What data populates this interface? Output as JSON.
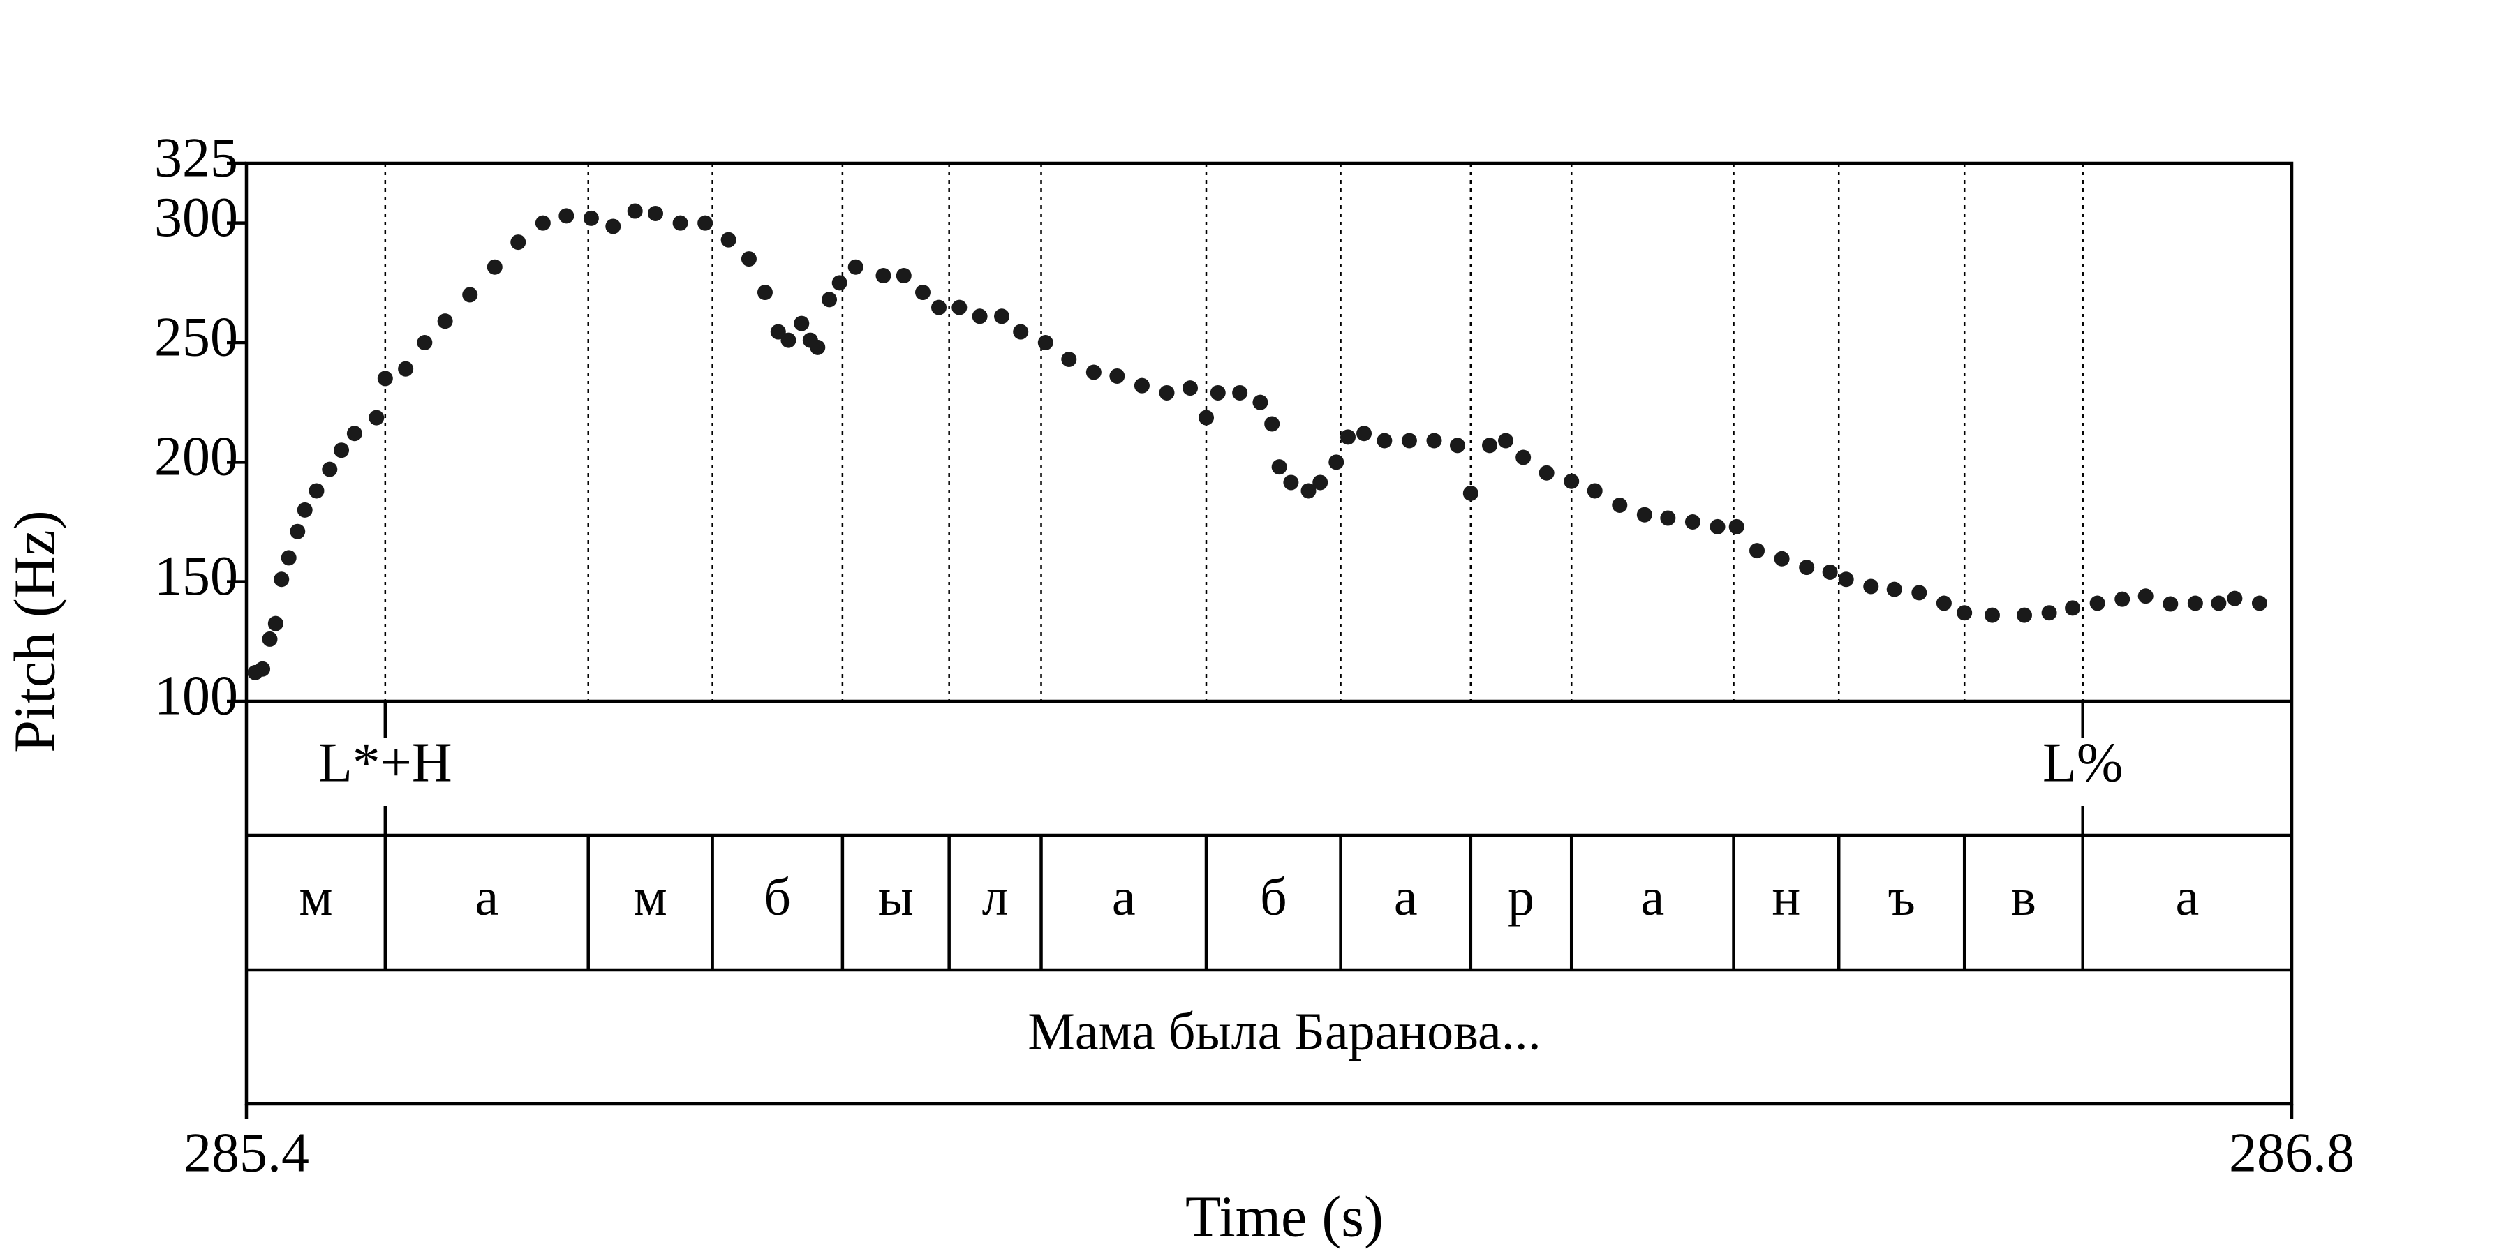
{
  "chart_data": {
    "type": "scatter",
    "xlabel": "Time (s)",
    "ylabel": "Pitch (Hz)",
    "color": "#1a1a1a",
    "xlim": [
      285.4,
      286.8
    ],
    "xticks": [
      285.4,
      286.8
    ],
    "ylim": [
      100,
      325
    ],
    "yticks": [
      100,
      150,
      200,
      250,
      300,
      325
    ],
    "x": [
      285.406,
      285.411,
      285.416,
      285.42,
      285.424,
      285.429,
      285.435,
      285.44,
      285.448,
      285.457,
      285.465,
      285.474,
      285.489,
      285.495,
      285.509,
      285.522,
      285.536,
      285.553,
      285.57,
      285.586,
      285.603,
      285.619,
      285.636,
      285.651,
      285.666,
      285.68,
      285.697,
      285.714,
      285.73,
      285.744,
      285.755,
      285.764,
      285.771,
      285.78,
      285.786,
      285.791,
      285.799,
      285.806,
      285.817,
      285.836,
      285.85,
      285.863,
      285.874,
      285.888,
      285.902,
      285.917,
      285.93,
      285.947,
      285.963,
      285.98,
      285.996,
      286.013,
      286.03,
      286.046,
      286.057,
      286.065,
      286.08,
      286.094,
      286.102,
      286.107,
      286.115,
      286.127,
      286.135,
      286.146,
      286.154,
      286.165,
      286.179,
      286.196,
      286.213,
      286.229,
      286.238,
      286.251,
      286.262,
      286.274,
      286.29,
      286.307,
      286.323,
      286.34,
      286.357,
      286.373,
      286.39,
      286.407,
      286.42,
      286.434,
      286.451,
      286.468,
      286.484,
      286.495,
      286.512,
      286.528,
      286.545,
      286.562,
      286.576,
      286.595,
      286.617,
      286.634,
      286.65,
      286.667,
      286.684,
      286.7,
      286.717,
      286.734,
      286.75,
      286.761,
      286.778
    ],
    "values": [
      112,
      113.5,
      126,
      132.5,
      151,
      160,
      171,
      180,
      188,
      197,
      205,
      212,
      218.6,
      235,
      239,
      250,
      259,
      270,
      281.6,
      292,
      300,
      303,
      302,
      298.6,
      305,
      304,
      300,
      300,
      293,
      285,
      271,
      254.5,
      251,
      258,
      251,
      248,
      268,
      275,
      281.6,
      278,
      278,
      271,
      264.7,
      264.7,
      261,
      261,
      254.5,
      250,
      243,
      237.6,
      236,
      232,
      229,
      231,
      218.6,
      229,
      229,
      225,
      216,
      198,
      191.5,
      188,
      191.5,
      200,
      210.5,
      212,
      209,
      209,
      209,
      207,
      187,
      207,
      209,
      202,
      195.5,
      192,
      188,
      182,
      178,
      176.6,
      175,
      173,
      173,
      163,
      159.6,
      156,
      154,
      151,
      148,
      146.8,
      145.4,
      141,
      137,
      136,
      136,
      137,
      139,
      141,
      142.7,
      144,
      140.7,
      141,
      141,
      143,
      141
    ]
  },
  "tiers": {
    "tones": {
      "times": [
        285.495,
        286.657
      ],
      "labels": [
        "L*+H",
        "L%"
      ]
    },
    "segments": {
      "boundaries": [
        285.495,
        285.634,
        285.719,
        285.808,
        285.881,
        285.944,
        286.057,
        286.149,
        286.238,
        286.307,
        286.418,
        286.49,
        286.576,
        286.657
      ],
      "labels": [
        "м",
        "а",
        "м",
        "б",
        "ы",
        "л",
        "а",
        "б",
        "а",
        "р",
        "а",
        "н",
        "ъ",
        "в",
        "а"
      ]
    },
    "text": "Мама была Баранова..."
  }
}
